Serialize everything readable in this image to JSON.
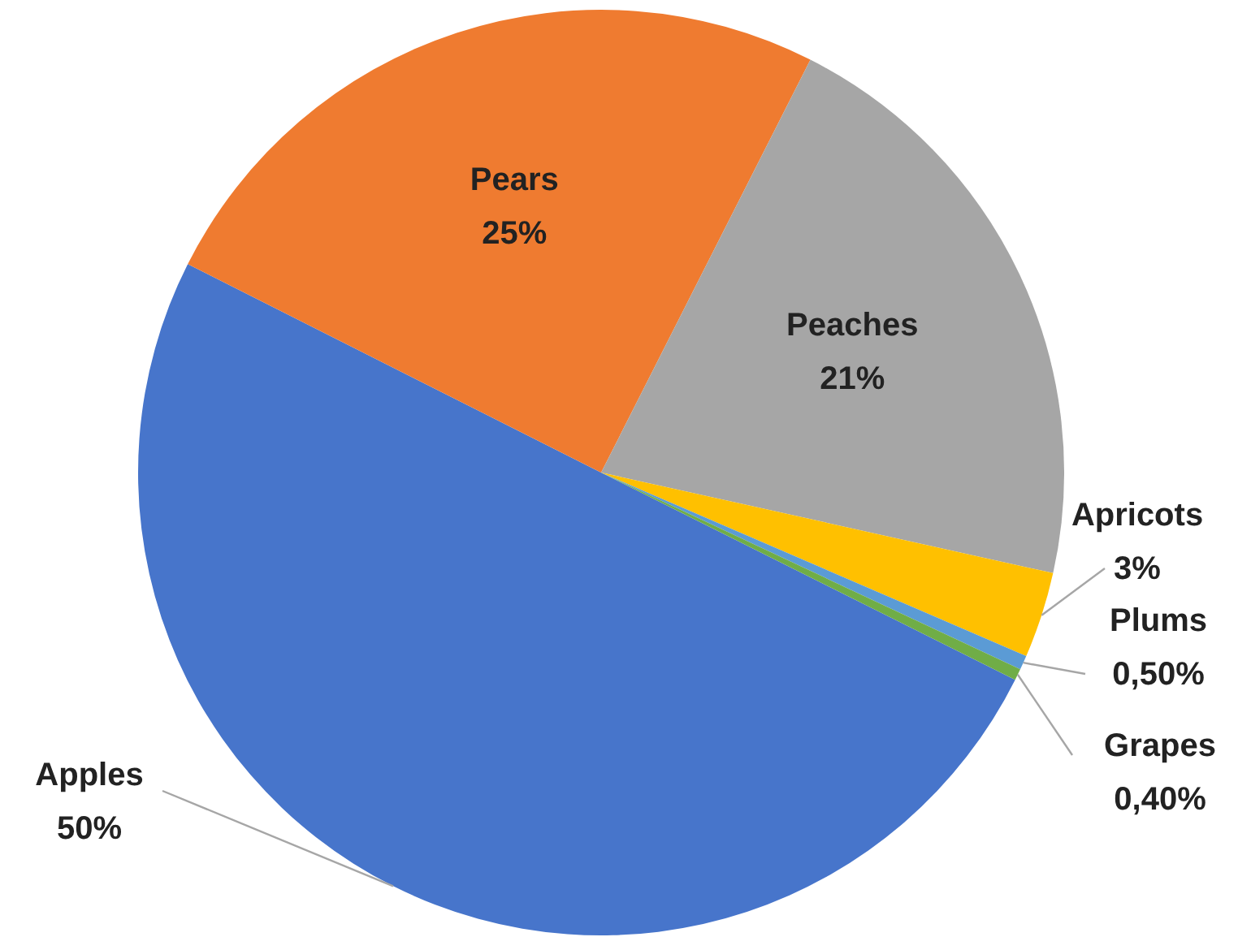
{
  "chart_data": {
    "type": "pie",
    "categories": [
      "Apples",
      "Pears",
      "Peaches",
      "Apricots",
      "Plums",
      "Grapes"
    ],
    "values": [
      50,
      25,
      21,
      3,
      0.5,
      0.4
    ],
    "colors": [
      "#4775cb",
      "#ef7b30",
      "#a6a6a6",
      "#ffc000",
      "#5b9bd5",
      "#70ad47"
    ],
    "value_labels": [
      "50%",
      "25%",
      "21%",
      "3%",
      "0,50%",
      "0,40%"
    ],
    "legend": false
  }
}
